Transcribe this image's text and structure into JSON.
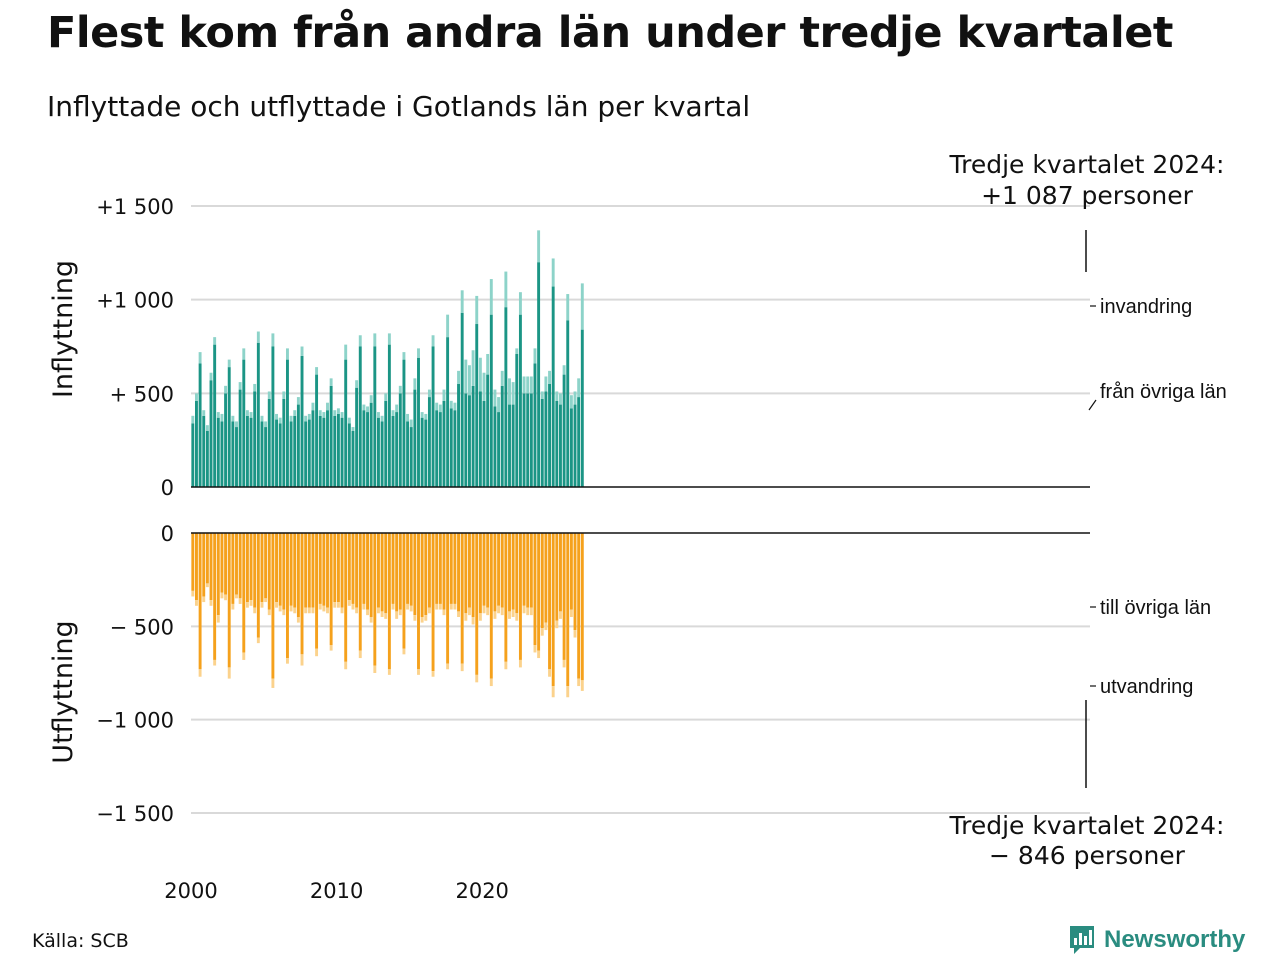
{
  "title": "Flest kom från andra län under tredje kvartalet",
  "subtitle": "Inflyttade och utflyttade i Gotlands län per kvartal",
  "source": "Källa: SCB",
  "brand": "Newsworthy",
  "colors": {
    "inflow_domestic": "#1b9585",
    "inflow_immigration": "#8dd3c9",
    "outflow_domestic": "#f5a11c",
    "outflow_emigration": "#fbd28c",
    "grid": "#d9d9d9",
    "brand": "#2a8c80"
  },
  "chart_data": {
    "type": "bar",
    "stacked": true,
    "x_start": "2000 Q1",
    "x_tick_labels": [
      "2000",
      "2010",
      "2020"
    ],
    "ylabel_top": "Inflyttning",
    "ylabel_bottom": "Utflyttning",
    "top_ticks": [
      "+1 500",
      "+1 000",
      "+  500",
      "0"
    ],
    "bottom_ticks": [
      "0",
      "−  500",
      "−1 000",
      "−1 500"
    ],
    "top_ylim": [
      0,
      1500
    ],
    "bottom_ylim": [
      -1500,
      0
    ],
    "annotation_top": [
      "Tredje kvartalet 2024:",
      "+1 087 personer"
    ],
    "annotation_bottom": [
      "Tredje kvartalet 2024:",
      "−  846 personer"
    ],
    "series": [
      {
        "name": "från övriga län",
        "values": [
          340,
          460,
          660,
          380,
          300,
          570,
          760,
          370,
          350,
          500,
          640,
          350,
          320,
          520,
          680,
          380,
          370,
          510,
          770,
          350,
          320,
          470,
          750,
          360,
          340,
          470,
          680,
          350,
          380,
          440,
          700,
          350,
          360,
          410,
          600,
          380,
          370,
          410,
          540,
          380,
          390,
          370,
          680,
          340,
          300,
          530,
          750,
          410,
          400,
          450,
          750,
          370,
          350,
          460,
          760,
          380,
          400,
          500,
          680,
          350,
          320,
          520,
          690,
          370,
          360,
          480,
          750,
          410,
          400,
          460,
          800,
          420,
          410,
          550,
          930,
          500,
          490,
          540,
          870,
          510,
          460,
          600,
          920,
          430,
          400,
          540,
          960,
          440,
          440,
          710,
          920,
          500,
          500,
          500,
          660,
          1200,
          470,
          510,
          550,
          1070,
          460,
          440,
          600,
          890,
          420,
          440,
          480,
          840
        ]
      },
      {
        "name": "invandring",
        "values": [
          40,
          40,
          60,
          30,
          30,
          40,
          40,
          30,
          40,
          40,
          40,
          30,
          30,
          40,
          60,
          30,
          30,
          40,
          60,
          30,
          30,
          40,
          70,
          30,
          30,
          40,
          60,
          30,
          30,
          40,
          50,
          30,
          30,
          40,
          40,
          30,
          30,
          40,
          40,
          30,
          30,
          30,
          80,
          30,
          20,
          40,
          60,
          30,
          30,
          40,
          70,
          30,
          30,
          40,
          60,
          30,
          40,
          40,
          40,
          40,
          40,
          60,
          50,
          30,
          30,
          40,
          60,
          40,
          40,
          60,
          120,
          40,
          40,
          70,
          120,
          180,
          160,
          190,
          150,
          180,
          150,
          110,
          190,
          90,
          80,
          80,
          190,
          140,
          120,
          30,
          120,
          90,
          90,
          90,
          80,
          170,
          40,
          80,
          70,
          150,
          50,
          60,
          50,
          140,
          70,
          70,
          100,
          247
        ]
      },
      {
        "name": "till övriga län",
        "values": [
          310,
          360,
          730,
          340,
          270,
          360,
          680,
          440,
          320,
          330,
          720,
          380,
          330,
          350,
          640,
          370,
          360,
          400,
          560,
          370,
          350,
          410,
          780,
          370,
          390,
          410,
          670,
          390,
          400,
          450,
          650,
          400,
          400,
          400,
          620,
          380,
          390,
          400,
          600,
          370,
          370,
          400,
          690,
          360,
          380,
          400,
          630,
          380,
          410,
          450,
          710,
          400,
          420,
          430,
          730,
          380,
          420,
          410,
          620,
          380,
          390,
          440,
          730,
          450,
          440,
          400,
          740,
          380,
          380,
          410,
          700,
          380,
          380,
          420,
          700,
          430,
          400,
          450,
          760,
          430,
          390,
          400,
          780,
          420,
          390,
          400,
          690,
          420,
          410,
          430,
          680,
          390,
          400,
          400,
          600,
          630,
          510,
          480,
          730,
          820,
          470,
          420,
          680,
          820,
          410,
          520,
          780,
          789
        ]
      },
      {
        "name": "utvandring",
        "values": [
          30,
          30,
          40,
          30,
          20,
          30,
          30,
          40,
          30,
          30,
          60,
          30,
          20,
          30,
          40,
          30,
          30,
          30,
          30,
          30,
          20,
          30,
          50,
          30,
          30,
          30,
          30,
          30,
          30,
          30,
          60,
          30,
          30,
          30,
          40,
          30,
          30,
          30,
          30,
          30,
          30,
          30,
          40,
          30,
          30,
          30,
          40,
          30,
          30,
          30,
          40,
          30,
          30,
          30,
          30,
          30,
          40,
          30,
          30,
          30,
          30,
          30,
          30,
          30,
          30,
          30,
          30,
          30,
          30,
          30,
          30,
          30,
          30,
          30,
          40,
          40,
          40,
          40,
          40,
          40,
          40,
          40,
          40,
          40,
          40,
          40,
          40,
          40,
          40,
          40,
          40,
          40,
          40,
          40,
          40,
          40,
          40,
          40,
          40,
          60,
          40,
          40,
          40,
          60,
          40,
          40,
          40,
          57
        ]
      }
    ],
    "legend": [
      "invandring",
      "från övriga län",
      "till övriga län",
      "utvandring"
    ],
    "legend_placement": "right"
  }
}
